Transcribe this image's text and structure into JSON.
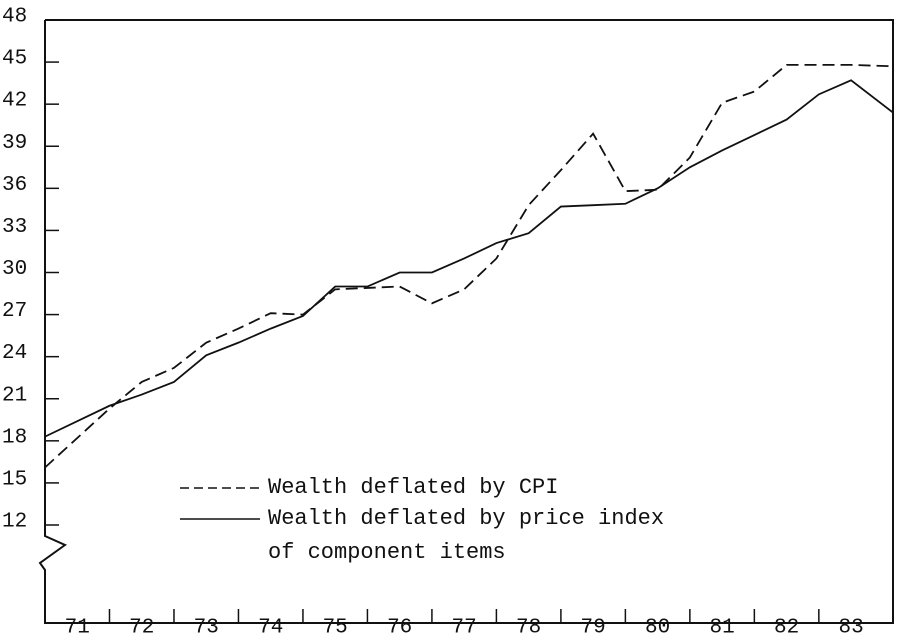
{
  "chart_data": {
    "type": "line",
    "categories": [
      "71",
      "72",
      "73",
      "74",
      "75",
      "76",
      "77",
      "78",
      "79",
      "80",
      "81",
      "82",
      "83"
    ],
    "x": [
      71,
      72,
      72.5,
      73,
      73.5,
      74,
      74.5,
      75,
      75.5,
      76,
      76.5,
      77,
      77.5,
      78,
      78.5,
      79,
      79.5,
      80,
      80.5,
      81,
      81.5,
      82,
      82.5,
      83,
      83.5,
      84.15
    ],
    "series": [
      {
        "name": "Wealth deflated by CPI",
        "color": "#111111",
        "dash": true,
        "values": [
          16.1,
          20.3,
          22.2,
          23.2,
          25.0,
          26.0,
          27.1,
          27.0,
          28.8,
          28.9,
          29.0,
          27.8,
          28.8,
          31.0,
          34.8,
          37.3,
          39.9,
          35.8,
          35.9,
          38.2,
          42.1,
          42.9,
          44.8,
          44.8,
          44.8,
          44.7
        ]
      },
      {
        "name": "Wealth deflated by price index of component items",
        "color": "#111111",
        "dash": false,
        "values": [
          18.3,
          20.5,
          21.3,
          22.2,
          24.1,
          25.0,
          26.0,
          26.9,
          29.0,
          29.0,
          30.0,
          30.0,
          31.0,
          32.1,
          32.8,
          34.7,
          34.8,
          34.9,
          36.0,
          37.5,
          38.7,
          39.8,
          40.9,
          42.7,
          43.7,
          41.4
        ]
      }
    ],
    "xlim": [
      71,
      84.15
    ],
    "xticks": [
      72,
      73,
      74,
      75,
      76,
      77,
      78,
      79,
      80,
      81,
      82,
      83
    ],
    "ylim": [
      12,
      48
    ],
    "yticks": [
      12,
      15,
      18,
      21,
      24,
      27,
      30,
      33,
      36,
      39,
      42,
      45,
      48
    ]
  }
}
